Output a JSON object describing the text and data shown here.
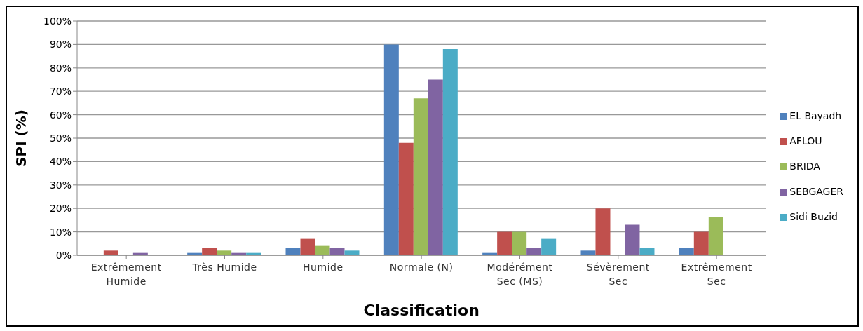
{
  "chart_data": {
    "type": "bar",
    "xlabel": "Classification",
    "ylabel": "SPI (%)",
    "categories": [
      "Extrêmement Humide",
      "Très  Humide",
      "Humide",
      "Normale  (N)",
      "Modérément Sec (MS)",
      "Sévèrement Sec",
      "Extrêmement Sec"
    ],
    "series": [
      {
        "name": "EL Bayadh",
        "color": "#4f81bd",
        "values": [
          0,
          1,
          3,
          90,
          1,
          2,
          3
        ]
      },
      {
        "name": "AFLOU",
        "color": "#c0504d",
        "values": [
          2,
          3,
          7,
          48,
          10,
          20,
          10
        ]
      },
      {
        "name": "BRIDA",
        "color": "#9bbb59",
        "values": [
          0,
          2,
          4,
          67,
          10,
          0,
          16.5
        ]
      },
      {
        "name": "SEBGAGER",
        "color": "#8064a2",
        "values": [
          1,
          1,
          3,
          75,
          3,
          13,
          0
        ]
      },
      {
        "name": "Sidi Buzid",
        "color": "#4bacc6",
        "values": [
          0,
          1,
          2,
          88,
          7,
          3,
          0
        ]
      }
    ],
    "ylim": [
      0,
      100
    ],
    "yticks": [
      {
        "value": 0,
        "label": "0%"
      },
      {
        "value": 10,
        "label": "10%"
      },
      {
        "value": 20,
        "label": "20%"
      },
      {
        "value": 30,
        "label": "30%"
      },
      {
        "value": 40,
        "label": "40%"
      },
      {
        "value": 50,
        "label": "50%"
      },
      {
        "value": 60,
        "label": "60%"
      },
      {
        "value": 70,
        "label": "70%"
      },
      {
        "value": 80,
        "label": "80%"
      },
      {
        "value": 90,
        "label": "90%"
      },
      {
        "value": 100,
        "label": "100%"
      }
    ],
    "grid": "y",
    "legend": "right"
  }
}
